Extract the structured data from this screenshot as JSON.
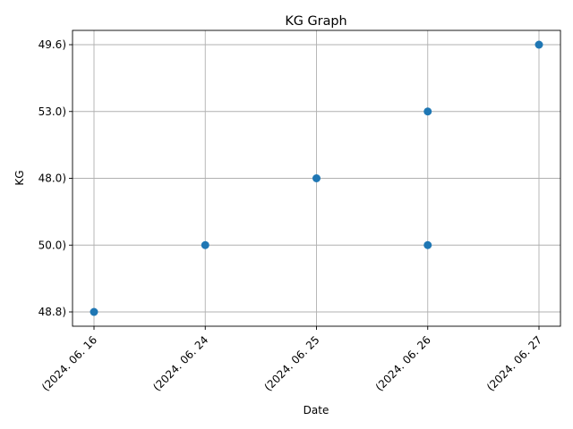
{
  "chart_data": {
    "type": "scatter",
    "title": "KG Graph",
    "xlabel": "Date",
    "ylabel": "KG",
    "x_categories": [
      "(2024. 06. 16",
      "(2024. 06. 24",
      "(2024. 06. 25",
      "(2024. 06. 26",
      "(2024. 06. 27"
    ],
    "y_categories": [
      "48.8)",
      "50.0)",
      "48.0)",
      "53.0)",
      "49.6)"
    ],
    "points": [
      {
        "x": "(2024. 06. 16",
        "y": "48.8)"
      },
      {
        "x": "(2024. 06. 24",
        "y": "50.0)"
      },
      {
        "x": "(2024. 06. 25",
        "y": "48.0)"
      },
      {
        "x": "(2024. 06. 26",
        "y": "53.0)"
      },
      {
        "x": "(2024. 06. 26",
        "y": "50.0)"
      },
      {
        "x": "(2024. 06. 27",
        "y": "49.6)"
      }
    ],
    "grid": true,
    "colors": {
      "marker": "#1f77b4",
      "grid": "#b0b0b0",
      "axis": "#000000"
    }
  }
}
